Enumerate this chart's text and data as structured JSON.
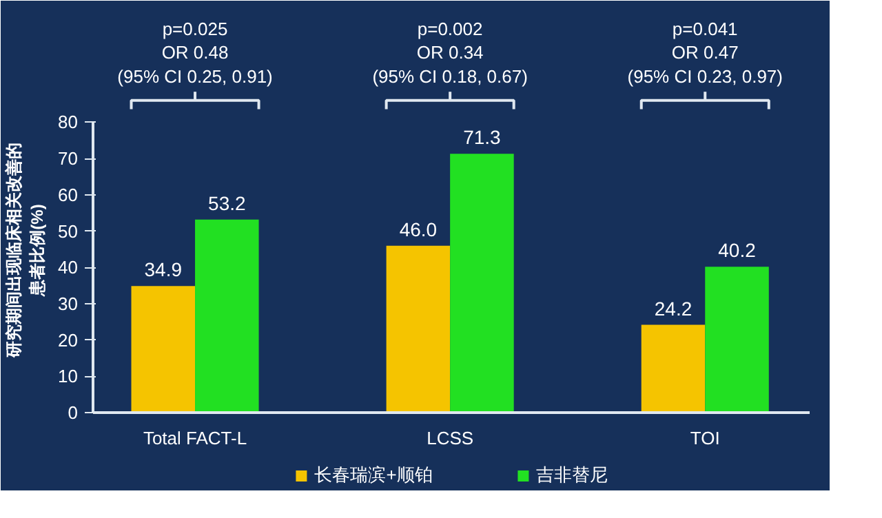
{
  "chart_data": {
    "type": "bar",
    "categories": [
      "Total FACT-L",
      "LCSS",
      "TOI"
    ],
    "series": [
      {
        "name": "长春瑞滨+顺铂",
        "color": "#f5c400",
        "values": [
          34.9,
          46.0,
          24.2
        ]
      },
      {
        "name": "吉非替尼",
        "color": "#22e022",
        "values": [
          53.2,
          71.3,
          40.2
        ]
      }
    ],
    "value_labels": [
      [
        "34.9",
        "46.0",
        "24.2"
      ],
      [
        "53.2",
        "71.3",
        "40.2"
      ]
    ],
    "ylabel": "研究期间出现临床相关改善的患者比例(%)",
    "ylim": [
      0,
      80
    ],
    "yticks": [
      0,
      10,
      20,
      30,
      40,
      50,
      60,
      70,
      80
    ],
    "annotations": [
      "p=0.025\nOR 0.48\n(95% CI 0.25, 0.91)",
      "p=0.002\nOR 0.34\n(95% CI 0.18, 0.67)",
      "p=0.041\nOR 0.47\n(95% CI 0.23, 0.97)"
    ],
    "grid": false,
    "legend": "bottom"
  }
}
